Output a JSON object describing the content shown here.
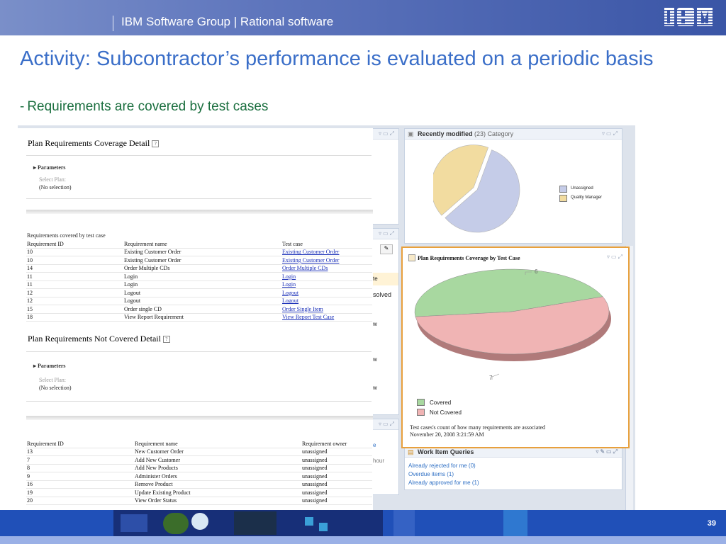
{
  "header": {
    "group": "IBM Software Group | Rational software",
    "logo": "IBM"
  },
  "title": "Activity: Subcontractor’s performance is evaluated on a periodic basis",
  "subtitle": {
    "dash": "-",
    "text": "Requirements are covered by test cases"
  },
  "page_number": "39",
  "colors": {
    "title": "#3a6ec8",
    "subtitle": "#1b6f3f",
    "accent_orange": "#e8a03c",
    "covered_green": "#a8d8a0",
    "not_covered_pink": "#f0b4b4"
  },
  "recent": {
    "title": "Recently modified",
    "count": "(23)",
    "category": "Category",
    "legend": [
      "Unassigned",
      "Quality Manager"
    ],
    "chart_data": {
      "type": "pie",
      "labels": [
        "Unassigned",
        "Quality Manager"
      ],
      "values": [
        58,
        42
      ]
    }
  },
  "coverage": {
    "title": "Plan Requirements Coverage by Test Case",
    "label_covered_count": "6",
    "label_not_covered_count": "7",
    "legend": [
      "Covered",
      "Not Covered"
    ],
    "note": "Test cases's count of how many requirements are associated",
    "timestamp": "November 20, 2008 3:21:59 AM",
    "chart_data": {
      "type": "pie",
      "labels": [
        "Covered",
        "Not Covered"
      ],
      "values": [
        6,
        7
      ]
    }
  },
  "work_items": {
    "title": "Work Item Queries",
    "links": [
      "Already rejected for me (0)",
      "Overdue items (1)",
      "Already approved for me (1)"
    ]
  },
  "behind_fragments": {
    "solved": "solved",
    "te": "te",
    "w1": "w",
    "w2": "w",
    "w3": "w",
    "e": "e",
    "hour": "hour"
  },
  "report": {
    "detail_title": "Plan Requirements Coverage Detail",
    "parameters": "Parameters",
    "select_plan": "Select Plan:",
    "no_selection": "(No selection)",
    "covered_caption": "Requirements covered by test case",
    "covered_headers": [
      "Requirement ID",
      "Requirement name",
      "Test case"
    ],
    "covered_rows": [
      [
        "10",
        "Existing Customer Order",
        "Existing Customer Order"
      ],
      [
        "10",
        "Existing Customer Order",
        "Existing Customer Order"
      ],
      [
        "14",
        "Order Multiple CDs",
        "Order Multiple CDs"
      ],
      [
        "11",
        "Login",
        "Login"
      ],
      [
        "11",
        "Login",
        "Login"
      ],
      [
        "12",
        "Logout",
        "Logout"
      ],
      [
        "12",
        "Logout",
        "Logout"
      ],
      [
        "15",
        "Order single CD",
        "Order Single Item"
      ],
      [
        "18",
        "View Report Requirement",
        "View Report Test Case"
      ]
    ],
    "not_covered_title": "Plan Requirements Not Covered Detail",
    "parameters2": "Parameters",
    "select_plan2": "Select Plan:",
    "no_selection2": "(No selection)",
    "uncovered_headers": [
      "Requirement ID",
      "Requirement name",
      "Requirement owner"
    ],
    "uncovered_rows": [
      [
        "13",
        "New Customer Order",
        "unassigned"
      ],
      [
        "7",
        "Add New Customer",
        "unassigned"
      ],
      [
        "8",
        "Add New Products",
        "unassigned"
      ],
      [
        "9",
        "Administer Orders",
        "unassigned"
      ],
      [
        "16",
        "Remove Product",
        "unassigned"
      ],
      [
        "19",
        "Update Existing Product",
        "unassigned"
      ],
      [
        "20",
        "View Order Status",
        "unassigned"
      ]
    ]
  }
}
